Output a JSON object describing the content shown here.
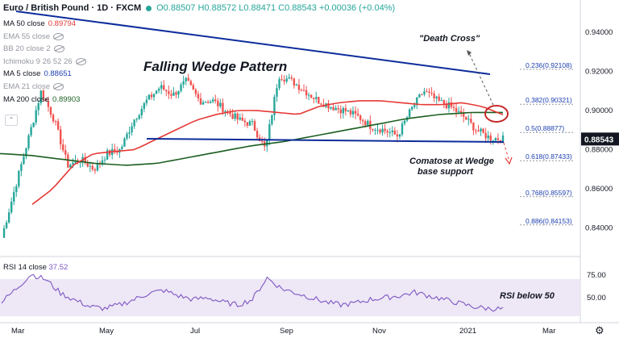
{
  "header": {
    "symbol": "Euro / British Pound · 1D · FXCM",
    "ohlc": "O0.88507 H0.88572 L0.88471 C0.88543 +0.00036 (+0.04%)"
  },
  "legend": [
    {
      "name": "MA 50 close",
      "value": "0.89794",
      "color": "#e53935",
      "dim": false
    },
    {
      "name": "EMA 55 close",
      "value": "",
      "color": "",
      "dim": true
    },
    {
      "name": "BB 20 close 2",
      "value": "",
      "color": "",
      "dim": true
    },
    {
      "name": "Ichimoku 9 26 52 26",
      "value": "",
      "color": "",
      "dim": true
    },
    {
      "name": "MA 5 close",
      "value": "0.88651",
      "color": "#1e40af",
      "dim": false
    },
    {
      "name": "EMA 21 close",
      "value": "",
      "color": "",
      "dim": true
    },
    {
      "name": "MA 200 close",
      "value": "0.89903",
      "color": "#1b5e20",
      "dim": false
    }
  ],
  "collapse_icon": "chevron-up-icon",
  "rsi": {
    "label": "RSI 14 close",
    "value": "37.52",
    "color": "#7e57c2",
    "band_color": "#ede7f6"
  },
  "annotations": {
    "pattern": "Falling Wedge Pattern",
    "death_cross": "\"Death Cross\"",
    "comatose_1": "Comatose at Wedge",
    "comatose_2": "base support",
    "rsi_note": "RSI below 50"
  },
  "price_axis": {
    "ticks": [
      "0.94000",
      "0.92000",
      "0.90000",
      "0.88000",
      "0.86000",
      "0.84000"
    ],
    "tick_values": [
      0.94,
      0.92,
      0.9,
      0.88,
      0.86,
      0.84
    ],
    "last_price": "0.88543",
    "last_value": 0.88543
  },
  "rsi_axis": {
    "ticks": [
      "75.00",
      "50.00"
    ],
    "tick_values": [
      75,
      50
    ]
  },
  "time_axis": [
    "Mar",
    "May",
    "Jul",
    "Sep",
    "Nov",
    "2021",
    "Mar"
  ],
  "fib_levels": [
    {
      "label": "0.236(0.92108)",
      "value": 0.92108
    },
    {
      "label": "0.382(0.90321)",
      "value": 0.90321
    },
    {
      "label": "0.5(0.88877)",
      "value": 0.88877
    },
    {
      "label": "0.618(0.87433)",
      "value": 0.87433
    },
    {
      "label": "0.768(0.85597)",
      "value": 0.85597
    },
    {
      "label": "0.886(0.84153)",
      "value": 0.84153
    }
  ],
  "colors": {
    "up": "#26a69a",
    "down": "#ef5350",
    "ma50": "#e53935",
    "ma200": "#1b5e20",
    "wedge": "#0d2c9b",
    "fib": "#1e40af"
  },
  "chart_data": {
    "type": "line",
    "price_range": [
      0.826,
      0.955
    ],
    "close_path_anchors": [
      0.835,
      0.86,
      0.885,
      0.91,
      0.895,
      0.872,
      0.875,
      0.87,
      0.878,
      0.88,
      0.895,
      0.905,
      0.912,
      0.908,
      0.915,
      0.905,
      0.905,
      0.9,
      0.895,
      0.893,
      0.88,
      0.918,
      0.915,
      0.91,
      0.905,
      0.902,
      0.9,
      0.897,
      0.892,
      0.89,
      0.887,
      0.9,
      0.91,
      0.905,
      0.902,
      0.897,
      0.89,
      0.886,
      0.8854
    ],
    "ma50_anchors": [
      0.852,
      0.86,
      0.872,
      0.878,
      0.879,
      0.88,
      0.885,
      0.89,
      0.895,
      0.898,
      0.9,
      0.9,
      0.899,
      0.898,
      0.902,
      0.904,
      0.905,
      0.905,
      0.904,
      0.903,
      0.903,
      0.904,
      0.902,
      0.8979
    ],
    "ma200_anchors": [
      0.878,
      0.877,
      0.875,
      0.873,
      0.872,
      0.873,
      0.876,
      0.879,
      0.882,
      0.884,
      0.887,
      0.89,
      0.893,
      0.896,
      0.898,
      0.899,
      0.899
    ],
    "rsi_anchors": [
      45,
      60,
      76,
      70,
      55,
      47,
      40,
      38,
      42,
      48,
      55,
      58,
      52,
      48,
      50,
      45,
      42,
      48,
      72,
      60,
      55,
      50,
      45,
      42,
      44,
      48,
      50,
      52,
      56,
      52,
      48,
      44,
      40,
      38,
      37.5
    ]
  }
}
